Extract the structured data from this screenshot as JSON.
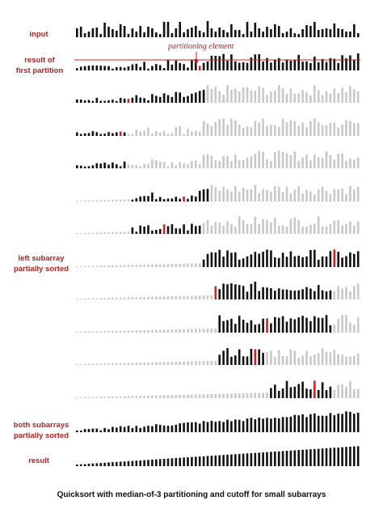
{
  "labels": {
    "input": "input",
    "first_partition": [
      "result of",
      "first partition"
    ],
    "left_sorted": [
      "left subarray",
      "partially sorted"
    ],
    "both_sorted": [
      "both subarrays",
      "partially sorted"
    ],
    "result": "result"
  },
  "partition_label": "partitioning element",
  "caption": "Quicksort with median-of-3 partitioning and cutoff for small subarrays",
  "colors": {
    "label": "#b22222",
    "active": "#111111",
    "inactive": "#c8c8c8",
    "pivot": "#cc2222"
  },
  "n_bars": 72,
  "rows": [
    {
      "active": [],
      "done": [],
      "pivot": -1,
      "input": true
    },
    {
      "active": [
        0,
        71
      ],
      "done": [],
      "pivot": 31
    },
    {
      "active": [
        0,
        32
      ],
      "done": [],
      "pivot": 13
    },
    {
      "active": [
        0,
        12
      ],
      "done": [],
      "pivot": 11
    },
    {
      "active": [
        0,
        12
      ],
      "done": [],
      "pivot": -1
    },
    {
      "active": [
        14,
        33
      ],
      "done": [
        0,
        13
      ],
      "pivot": 27
    },
    {
      "active": [
        14,
        31
      ],
      "done": [
        0,
        13
      ],
      "pivot": 22
    },
    {
      "active": [
        32,
        71
      ],
      "done": [
        0,
        31
      ],
      "pivot": 65
    },
    {
      "active": [
        35,
        64
      ],
      "done": [
        0,
        34
      ],
      "pivot": 35
    },
    {
      "active": [
        36,
        64
      ],
      "done": [
        0,
        35
      ],
      "pivot": 48
    },
    {
      "active": [
        36,
        47
      ],
      "done": [
        0,
        35
      ],
      "pivot": 45
    },
    {
      "active": [
        49,
        64
      ],
      "done": [
        0,
        48
      ],
      "pivot": 60
    },
    {
      "active": [
        0,
        71
      ],
      "done": [],
      "pivot": -1,
      "both": true
    },
    {
      "active": [
        0,
        71
      ],
      "done": [],
      "pivot": -1,
      "sorted": true
    }
  ]
}
